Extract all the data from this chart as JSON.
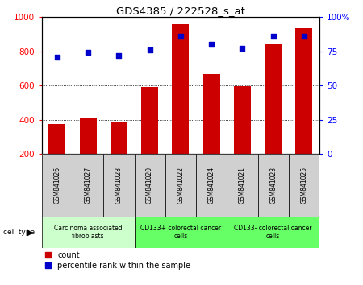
{
  "title": "GDS4385 / 222528_s_at",
  "samples": [
    "GSM841026",
    "GSM841027",
    "GSM841028",
    "GSM841020",
    "GSM841022",
    "GSM841024",
    "GSM841021",
    "GSM841023",
    "GSM841025"
  ],
  "counts": [
    375,
    410,
    385,
    590,
    960,
    665,
    595,
    840,
    935
  ],
  "percentile_ranks": [
    71,
    74,
    72,
    76,
    86,
    80,
    77,
    86,
    86
  ],
  "groups": [
    {
      "label": "Carcinoma associated\nfibroblasts",
      "start": 0,
      "end": 3,
      "color": "#ccffcc"
    },
    {
      "label": "CD133+ colorectal cancer\ncells",
      "start": 3,
      "end": 6,
      "color": "#66ff66"
    },
    {
      "label": "CD133- colorectal cancer\ncells",
      "start": 6,
      "end": 9,
      "color": "#66ff66"
    }
  ],
  "bar_color": "#cc0000",
  "dot_color": "#0000cc",
  "ylim_left": [
    200,
    1000
  ],
  "ylim_right": [
    0,
    100
  ],
  "yticks_left": [
    200,
    400,
    600,
    800,
    1000
  ],
  "yticks_right": [
    0,
    25,
    50,
    75,
    100
  ],
  "yticklabels_right": [
    "0",
    "25",
    "50",
    "75",
    "100%"
  ],
  "grid_values": [
    400,
    600,
    800
  ],
  "legend_count_label": "count",
  "legend_pct_label": "percentile rank within the sample",
  "cell_type_label": "cell type",
  "background_color": "#ffffff",
  "tick_area_color": "#d0d0d0"
}
